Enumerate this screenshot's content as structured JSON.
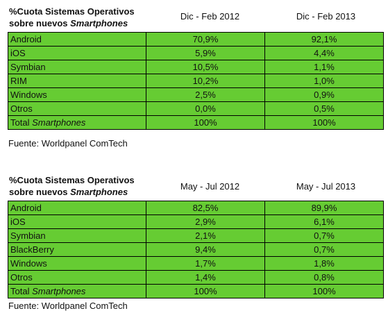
{
  "tables": [
    {
      "title_line1": "%Cuota Sistemas Operativos",
      "title_line2_prefix": "sobre nuevos ",
      "title_line2_italic": "Smartphones",
      "period_a": "Dic - Feb 2012",
      "period_b": "Dic - Feb 2013",
      "rows": [
        {
          "label": "Android",
          "a": "70,9%",
          "b": "92,1%"
        },
        {
          "label": "iOS",
          "a": "5,9%",
          "b": "4,4%"
        },
        {
          "label": "Symbian",
          "a": "10,5%",
          "b": "1,1%"
        },
        {
          "label": "RIM",
          "a": "10,2%",
          "b": "1,0%"
        },
        {
          "label": "Windows",
          "a": "2,5%",
          "b": "0,9%"
        },
        {
          "label": "Otros",
          "a": "0,0%",
          "b": "0,5%"
        }
      ],
      "total_prefix": "Total ",
      "total_italic": "Smartphones",
      "total_a": "100%",
      "total_b": "100%",
      "source": "Fuente: Worldpanel ComTech"
    },
    {
      "title_line1": "%Cuota Sistemas Operativos",
      "title_line2_prefix": "sobre nuevos ",
      "title_line2_italic": "Smartphones",
      "period_a": "May - Jul 2012",
      "period_b": "May - Jul 2013",
      "rows": [
        {
          "label": "Android",
          "a": "82,5%",
          "b": "89,9%"
        },
        {
          "label": "iOS",
          "a": "2,9%",
          "b": "6,1%"
        },
        {
          "label": "Symbian",
          "a": "2,1%",
          "b": "0,7%"
        },
        {
          "label": "BlackBerry",
          "a": "9,4%",
          "b": "0,7%"
        },
        {
          "label": "Windows",
          "a": "1,7%",
          "b": "1,8%"
        },
        {
          "label": "Otros",
          "a": "1,4%",
          "b": "0,8%"
        }
      ],
      "total_prefix": "Total ",
      "total_italic": "Smartphones",
      "total_a": "100%",
      "total_b": "100%",
      "source": "Fuente: Worldpanel ComTech"
    }
  ],
  "colors": {
    "table_fill": "#66cc33",
    "border": "#000000",
    "text": "#111111"
  }
}
